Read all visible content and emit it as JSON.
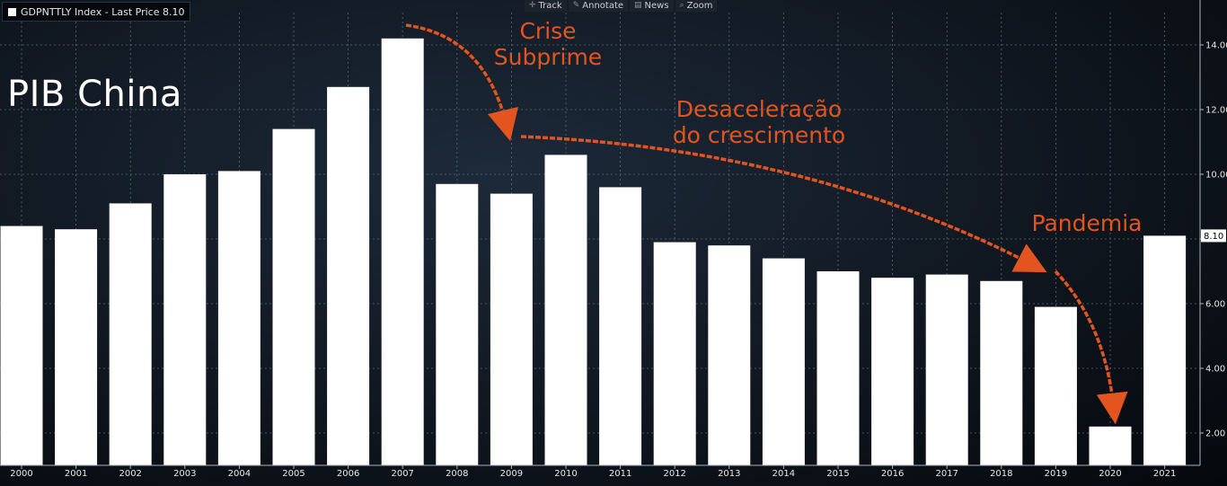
{
  "legend": {
    "label": "GDPNTTLY Index - Last Price 8.10"
  },
  "toolbar": {
    "track": "Track",
    "annotate": "Annotate",
    "news": "News",
    "zoom": "Zoom"
  },
  "title": "PIB China",
  "annotations": {
    "crisis_line1": "Crise",
    "crisis_line2": "Subprime",
    "slowdown_line1": "Desaceleração",
    "slowdown_line2": "do crescimento",
    "pandemic": "Pandemia"
  },
  "colors": {
    "bars": "#ffffff",
    "annotation": "#e3541f",
    "last_price_tag": "#ffffff"
  },
  "chart_data": {
    "type": "bar",
    "categories": [
      "2000",
      "2001",
      "2002",
      "2003",
      "2004",
      "2005",
      "2006",
      "2007",
      "2008",
      "2009",
      "2010",
      "2011",
      "2012",
      "2013",
      "2014",
      "2015",
      "2016",
      "2017",
      "2018",
      "2019",
      "2020",
      "2021"
    ],
    "series": [
      {
        "values": [
          8.4,
          8.3,
          9.1,
          10.0,
          10.1,
          11.4,
          12.7,
          14.2,
          9.7,
          9.4,
          10.6,
          9.6,
          7.9,
          7.8,
          7.4,
          7.0,
          6.8,
          6.9,
          6.7,
          5.9,
          2.2,
          8.1
        ]
      }
    ],
    "ylim": [
      1.0,
      15.0
    ],
    "yticks": [
      2.0,
      4.0,
      6.0,
      8.0,
      10.0,
      12.0,
      14.0
    ],
    "ytick_labels": [
      "2.00",
      "4.00",
      "6.00",
      "8.00",
      "10.00",
      "12.00",
      "14.00"
    ],
    "last_price_label": "8.10",
    "last_value": 8.1,
    "grid": true,
    "y_axis_side": "right"
  }
}
